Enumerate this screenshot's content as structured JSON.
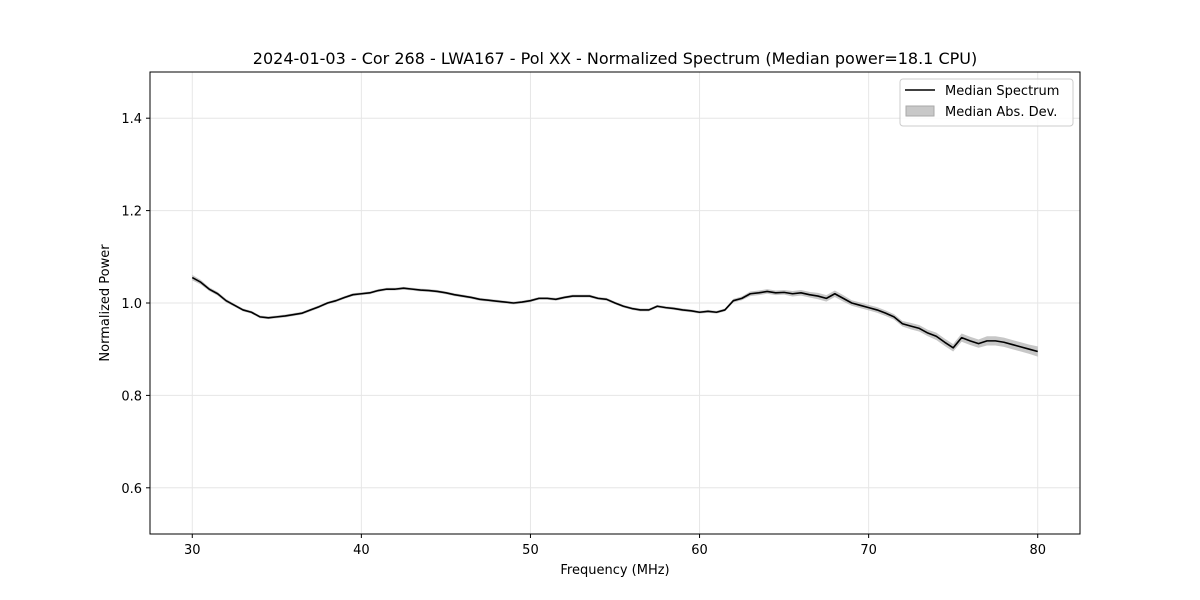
{
  "chart_data": {
    "type": "line",
    "title": "2024-01-03 - Cor 268 - LWA167 - Pol XX - Normalized Spectrum (Median power=18.1 CPU)",
    "xlabel": "Frequency (MHz)",
    "ylabel": "Normalized Power",
    "xlim": [
      27.5,
      82.5
    ],
    "ylim": [
      0.5,
      1.5
    ],
    "xticks": [
      30,
      40,
      50,
      60,
      70,
      80
    ],
    "yticks": [
      0.6,
      0.8,
      1.0,
      1.2,
      1.4
    ],
    "xtick_labels": [
      "30",
      "40",
      "50",
      "60",
      "70",
      "80"
    ],
    "ytick_labels": [
      "0.6",
      "0.8",
      "1.0",
      "1.2",
      "1.4"
    ],
    "grid": true,
    "legend_position": "top-right",
    "legend": [
      "Median Spectrum",
      "Median Abs. Dev."
    ],
    "series": [
      {
        "name": "Median Spectrum",
        "color": "#000000",
        "x": [
          30,
          30.5,
          31,
          31.5,
          32,
          32.5,
          33,
          33.5,
          34,
          34.5,
          35,
          35.5,
          36,
          36.5,
          37,
          37.5,
          38,
          38.5,
          39,
          39.5,
          40,
          40.5,
          41,
          41.5,
          42,
          42.5,
          43,
          43.5,
          44,
          44.5,
          45,
          45.5,
          46,
          46.5,
          47,
          47.5,
          48,
          48.5,
          49,
          49.5,
          50,
          50.5,
          51,
          51.5,
          52,
          52.5,
          53,
          53.5,
          54,
          54.5,
          55,
          55.5,
          56,
          56.5,
          57,
          57.5,
          58,
          58.5,
          59,
          59.5,
          60,
          60.5,
          61,
          61.5,
          62,
          62.5,
          63,
          63.5,
          64,
          64.5,
          65,
          65.5,
          66,
          66.5,
          67,
          67.5,
          68,
          68.5,
          69,
          69.5,
          70,
          70.5,
          71,
          71.5,
          72,
          72.5,
          73,
          73.5,
          74,
          74.5,
          75,
          75.5,
          76,
          76.5,
          77,
          77.5,
          78,
          78.5,
          79,
          79.5,
          80
        ],
        "values": [
          1.055,
          1.045,
          1.03,
          1.02,
          1.005,
          0.995,
          0.985,
          0.98,
          0.97,
          0.968,
          0.97,
          0.972,
          0.975,
          0.978,
          0.985,
          0.992,
          1.0,
          1.005,
          1.012,
          1.018,
          1.02,
          1.022,
          1.027,
          1.03,
          1.03,
          1.032,
          1.03,
          1.028,
          1.027,
          1.025,
          1.022,
          1.018,
          1.015,
          1.012,
          1.008,
          1.006,
          1.004,
          1.002,
          1.0,
          1.002,
          1.005,
          1.01,
          1.01,
          1.008,
          1.012,
          1.015,
          1.015,
          1.015,
          1.01,
          1.008,
          1.0,
          0.993,
          0.988,
          0.985,
          0.985,
          0.993,
          0.99,
          0.988,
          0.985,
          0.983,
          0.98,
          0.982,
          0.98,
          0.985,
          1.005,
          1.01,
          1.02,
          1.022,
          1.025,
          1.022,
          1.023,
          1.02,
          1.022,
          1.018,
          1.015,
          1.01,
          1.02,
          1.01,
          1.0,
          0.995,
          0.99,
          0.985,
          0.978,
          0.97,
          0.955,
          0.95,
          0.945,
          0.935,
          0.928,
          0.915,
          0.903,
          0.925,
          0.918,
          0.912,
          0.918,
          0.918,
          0.915,
          0.91,
          0.905,
          0.9,
          0.895
        ],
        "mad": [
          0.006,
          0.005,
          0.004,
          0.004,
          0.004,
          0.003,
          0.003,
          0.003,
          0.003,
          0.003,
          0.003,
          0.003,
          0.003,
          0.003,
          0.003,
          0.003,
          0.003,
          0.003,
          0.003,
          0.003,
          0.003,
          0.003,
          0.003,
          0.003,
          0.003,
          0.003,
          0.003,
          0.003,
          0.003,
          0.003,
          0.003,
          0.003,
          0.003,
          0.003,
          0.003,
          0.003,
          0.003,
          0.003,
          0.003,
          0.003,
          0.003,
          0.003,
          0.003,
          0.003,
          0.003,
          0.003,
          0.003,
          0.003,
          0.003,
          0.003,
          0.003,
          0.003,
          0.003,
          0.003,
          0.003,
          0.003,
          0.003,
          0.003,
          0.003,
          0.003,
          0.003,
          0.003,
          0.003,
          0.003,
          0.004,
          0.004,
          0.005,
          0.005,
          0.005,
          0.005,
          0.005,
          0.006,
          0.006,
          0.006,
          0.007,
          0.007,
          0.007,
          0.007,
          0.006,
          0.006,
          0.006,
          0.006,
          0.006,
          0.006,
          0.006,
          0.007,
          0.007,
          0.007,
          0.008,
          0.008,
          0.008,
          0.009,
          0.009,
          0.009,
          0.01,
          0.01,
          0.01,
          0.01,
          0.01,
          0.01,
          0.011
        ]
      }
    ],
    "colors": {
      "line": "#000000",
      "band": "#a9a9a9",
      "grid": "#e6e6e6",
      "axes": "#000000"
    }
  }
}
